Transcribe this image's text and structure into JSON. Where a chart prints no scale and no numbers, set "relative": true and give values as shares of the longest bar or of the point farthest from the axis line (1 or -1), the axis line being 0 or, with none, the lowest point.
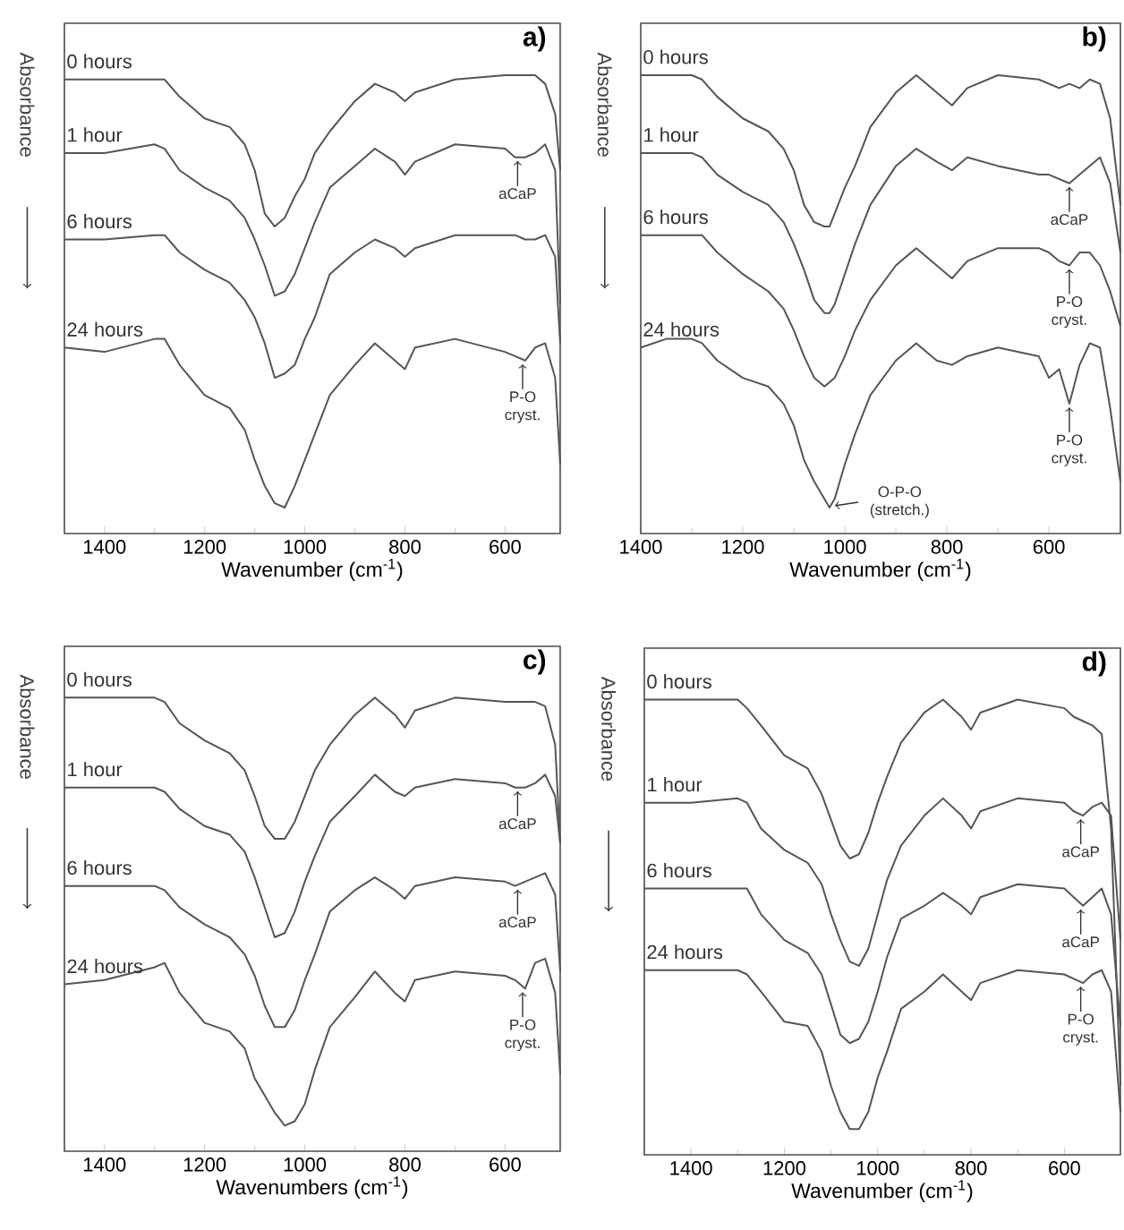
{
  "chart_data": [
    {
      "type": "line",
      "title": "a)",
      "xlabel": "Wavenumber (cm$^{-1}$)",
      "ylabel": "Absorbance",
      "relative": true,
      "xlim": [
        1480,
        490
      ],
      "xticks": [
        1400,
        1200,
        1000,
        800,
        600
      ],
      "x": [
        1480,
        1400,
        1300,
        1280,
        1250,
        1200,
        1150,
        1120,
        1100,
        1080,
        1060,
        1040,
        1020,
        1000,
        980,
        950,
        900,
        860,
        820,
        800,
        780,
        700,
        600,
        580,
        560,
        540,
        520,
        500,
        490
      ],
      "series": [
        {
          "name": "0 hours",
          "color": "#555555",
          "values": [
            0.99,
            0.99,
            0.99,
            0.99,
            0.95,
            0.9,
            0.88,
            0.84,
            0.78,
            0.68,
            0.65,
            0.67,
            0.72,
            0.76,
            0.82,
            0.87,
            0.94,
            0.98,
            0.96,
            0.94,
            0.96,
            0.99,
            1.0,
            1.0,
            1.0,
            1.0,
            0.98,
            0.91,
            0.78
          ]
        },
        {
          "name": "1 hour",
          "color": "#555555",
          "values": [
            0.82,
            0.82,
            0.84,
            0.83,
            0.78,
            0.74,
            0.71,
            0.67,
            0.62,
            0.56,
            0.49,
            0.5,
            0.54,
            0.6,
            0.66,
            0.74,
            0.79,
            0.83,
            0.8,
            0.77,
            0.8,
            0.84,
            0.83,
            0.81,
            0.81,
            0.82,
            0.84,
            0.78,
            0.47
          ]
        },
        {
          "name": "6 hours",
          "color": "#555555",
          "values": [
            0.62,
            0.62,
            0.63,
            0.63,
            0.59,
            0.55,
            0.52,
            0.48,
            0.44,
            0.38,
            0.3,
            0.31,
            0.33,
            0.39,
            0.44,
            0.54,
            0.59,
            0.62,
            0.6,
            0.58,
            0.6,
            0.63,
            0.63,
            0.63,
            0.62,
            0.62,
            0.63,
            0.58,
            0.38
          ]
        },
        {
          "name": "24 hours",
          "color": "#555555",
          "values": [
            0.37,
            0.36,
            0.39,
            0.39,
            0.33,
            0.26,
            0.23,
            0.18,
            0.11,
            0.05,
            0.01,
            0,
            0.05,
            0.11,
            0.17,
            0.26,
            0.33,
            0.38,
            0.34,
            0.32,
            0.37,
            0.39,
            0.36,
            0.35,
            0.34,
            0.37,
            0.38,
            0.3,
            0.1
          ]
        }
      ],
      "annotations": [
        {
          "text": "aCaP",
          "x": 575,
          "y": 0.81
        },
        {
          "text": "P-O cryst.",
          "x": 565,
          "y": 0.34
        }
      ]
    },
    {
      "type": "line",
      "title": "b)",
      "xlabel": "Wavenumber (cm$^{-1}$)",
      "ylabel": "Absorbance",
      "relative": true,
      "xlim": [
        1400,
        460
      ],
      "xticks": [
        1400,
        1200,
        1000,
        800,
        600
      ],
      "x": [
        1400,
        1350,
        1300,
        1280,
        1250,
        1200,
        1150,
        1120,
        1100,
        1080,
        1060,
        1040,
        1030,
        1020,
        1000,
        980,
        950,
        900,
        860,
        820,
        790,
        760,
        700,
        620,
        600,
        580,
        560,
        540,
        520,
        500,
        480,
        460
      ],
      "series": [
        {
          "name": "0 hours",
          "color": "#555555",
          "values": [
            1.0,
            1.0,
            1.0,
            0.99,
            0.95,
            0.9,
            0.87,
            0.83,
            0.78,
            0.7,
            0.66,
            0.65,
            0.65,
            0.68,
            0.74,
            0.79,
            0.88,
            0.96,
            1.0,
            0.96,
            0.93,
            0.97,
            1.0,
            0.99,
            0.98,
            0.97,
            0.98,
            0.97,
            0.99,
            0.98,
            0.9,
            0.7
          ]
        },
        {
          "name": "1 hour",
          "color": "#555555",
          "values": [
            0.82,
            0.82,
            0.82,
            0.81,
            0.77,
            0.73,
            0.7,
            0.66,
            0.61,
            0.55,
            0.48,
            0.45,
            0.45,
            0.47,
            0.54,
            0.61,
            0.7,
            0.79,
            0.83,
            0.8,
            0.78,
            0.81,
            0.79,
            0.77,
            0.77,
            0.76,
            0.75,
            0.77,
            0.79,
            0.81,
            0.75,
            0.59
          ]
        },
        {
          "name": "6 hours",
          "color": "#555555",
          "values": [
            0.63,
            0.63,
            0.63,
            0.63,
            0.59,
            0.54,
            0.5,
            0.46,
            0.41,
            0.35,
            0.3,
            0.28,
            0.29,
            0.3,
            0.35,
            0.41,
            0.48,
            0.56,
            0.6,
            0.56,
            0.53,
            0.57,
            0.6,
            0.6,
            0.59,
            0.57,
            0.56,
            0.59,
            0.59,
            0.56,
            0.5,
            0.42
          ]
        },
        {
          "name": "24 hours",
          "color": "#555555",
          "values": [
            0.37,
            0.39,
            0.39,
            0.38,
            0.34,
            0.3,
            0.28,
            0.24,
            0.19,
            0.11,
            0.06,
            0.02,
            0,
            0.02,
            0.1,
            0.17,
            0.26,
            0.34,
            0.38,
            0.34,
            0.33,
            0.35,
            0.37,
            0.35,
            0.3,
            0.32,
            0.24,
            0.33,
            0.38,
            0.37,
            0.23,
            0.06
          ]
        }
      ],
      "annotations": [
        {
          "text": "aCaP",
          "x": 560,
          "y": 0.75
        },
        {
          "text": "P-O cryst.",
          "x": 560,
          "y": 0.56
        },
        {
          "text": "P-O cryst.",
          "x": 560,
          "y": 0.24
        },
        {
          "text": "O-P-O (stretch.)",
          "x": 1030,
          "y": 0
        }
      ]
    },
    {
      "type": "line",
      "title": "c)",
      "xlabel": "Wavenumbers (cm$^{-1}$)",
      "ylabel": "Absorbance",
      "relative": true,
      "xlim": [
        1480,
        490
      ],
      "xticks": [
        1400,
        1200,
        1000,
        800,
        600
      ],
      "x": [
        1480,
        1400,
        1300,
        1280,
        1250,
        1200,
        1150,
        1120,
        1100,
        1080,
        1060,
        1040,
        1020,
        1000,
        980,
        950,
        900,
        860,
        820,
        800,
        780,
        700,
        600,
        580,
        560,
        540,
        520,
        500,
        490
      ],
      "series": [
        {
          "name": "0 hours",
          "color": "#555555",
          "values": [
            1.0,
            1.0,
            1.0,
            0.99,
            0.94,
            0.9,
            0.87,
            0.83,
            0.77,
            0.7,
            0.67,
            0.67,
            0.71,
            0.77,
            0.83,
            0.89,
            0.96,
            1.0,
            0.96,
            0.93,
            0.97,
            1.0,
            0.99,
            0.99,
            0.99,
            0.99,
            0.98,
            0.89,
            0.66
          ]
        },
        {
          "name": "1 hour",
          "color": "#555555",
          "values": [
            0.79,
            0.79,
            0.79,
            0.78,
            0.74,
            0.7,
            0.68,
            0.64,
            0.58,
            0.51,
            0.44,
            0.45,
            0.5,
            0.57,
            0.63,
            0.71,
            0.77,
            0.82,
            0.78,
            0.77,
            0.79,
            0.81,
            0.8,
            0.79,
            0.79,
            0.8,
            0.82,
            0.77,
            0.66
          ]
        },
        {
          "name": "6 hours",
          "color": "#555555",
          "values": [
            0.56,
            0.56,
            0.56,
            0.55,
            0.51,
            0.47,
            0.44,
            0.4,
            0.35,
            0.28,
            0.23,
            0.23,
            0.27,
            0.34,
            0.4,
            0.5,
            0.55,
            0.58,
            0.55,
            0.53,
            0.56,
            0.58,
            0.57,
            0.56,
            0.57,
            0.58,
            0.59,
            0.54,
            0.36
          ]
        },
        {
          "name": "24 hours",
          "color": "#555555",
          "values": [
            0.33,
            0.34,
            0.37,
            0.38,
            0.31,
            0.24,
            0.22,
            0.18,
            0.11,
            0.07,
            0.03,
            0,
            0.01,
            0.05,
            0.13,
            0.23,
            0.3,
            0.36,
            0.31,
            0.29,
            0.34,
            0.36,
            0.35,
            0.34,
            0.32,
            0.38,
            0.39,
            0.31,
            0.12
          ]
        }
      ],
      "annotations": [
        {
          "text": "aCaP",
          "x": 575,
          "y": 0.79
        },
        {
          "text": "aCaP",
          "x": 575,
          "y": 0.56
        },
        {
          "text": "P-O cryst.",
          "x": 565,
          "y": 0.32
        }
      ]
    },
    {
      "type": "line",
      "title": "d)",
      "xlabel": "Wavenumber (cm$^{-1}$)",
      "ylabel": "Absorbance",
      "relative": true,
      "xlim": [
        1500,
        480
      ],
      "xticks": [
        1400,
        1200,
        1000,
        800,
        600
      ],
      "x": [
        1500,
        1400,
        1300,
        1280,
        1250,
        1200,
        1150,
        1120,
        1100,
        1080,
        1060,
        1040,
        1020,
        1000,
        980,
        950,
        900,
        860,
        820,
        800,
        780,
        700,
        600,
        580,
        560,
        540,
        520,
        500,
        480
      ],
      "series": [
        {
          "name": "0 hours",
          "color": "#555555",
          "values": [
            1.0,
            1.0,
            1.0,
            0.98,
            0.94,
            0.87,
            0.84,
            0.78,
            0.72,
            0.66,
            0.63,
            0.64,
            0.69,
            0.76,
            0.82,
            0.9,
            0.97,
            1.0,
            0.96,
            0.93,
            0.97,
            1.0,
            0.98,
            0.96,
            0.95,
            0.94,
            0.92,
            0.7,
            0.1
          ]
        },
        {
          "name": "1 hour",
          "color": "#555555",
          "values": [
            0.76,
            0.76,
            0.77,
            0.76,
            0.7,
            0.65,
            0.62,
            0.57,
            0.5,
            0.44,
            0.39,
            0.38,
            0.42,
            0.5,
            0.58,
            0.66,
            0.73,
            0.77,
            0.73,
            0.7,
            0.74,
            0.77,
            0.76,
            0.74,
            0.73,
            0.75,
            0.76,
            0.73,
            0.44
          ]
        },
        {
          "name": "6 hours",
          "color": "#555555",
          "values": [
            0.56,
            0.56,
            0.56,
            0.56,
            0.5,
            0.44,
            0.41,
            0.36,
            0.29,
            0.22,
            0.2,
            0.21,
            0.25,
            0.32,
            0.4,
            0.49,
            0.52,
            0.55,
            0.52,
            0.5,
            0.54,
            0.57,
            0.56,
            0.54,
            0.52,
            0.54,
            0.56,
            0.5,
            0.24
          ]
        },
        {
          "name": "24 hours",
          "color": "#555555",
          "values": [
            0.37,
            0.37,
            0.37,
            0.36,
            0.32,
            0.25,
            0.24,
            0.18,
            0.1,
            0.04,
            0,
            0,
            0.04,
            0.12,
            0.18,
            0.28,
            0.32,
            0.36,
            0.32,
            0.3,
            0.34,
            0.37,
            0.36,
            0.35,
            0.34,
            0.36,
            0.37,
            0.32,
            0.04
          ]
        }
      ],
      "annotations": [
        {
          "text": "aCaP",
          "x": 565,
          "y": 0.73
        },
        {
          "text": "aCaP",
          "x": 565,
          "y": 0.52
        },
        {
          "text": "P-O cryst.",
          "x": 565,
          "y": 0.34
        }
      ]
    }
  ]
}
